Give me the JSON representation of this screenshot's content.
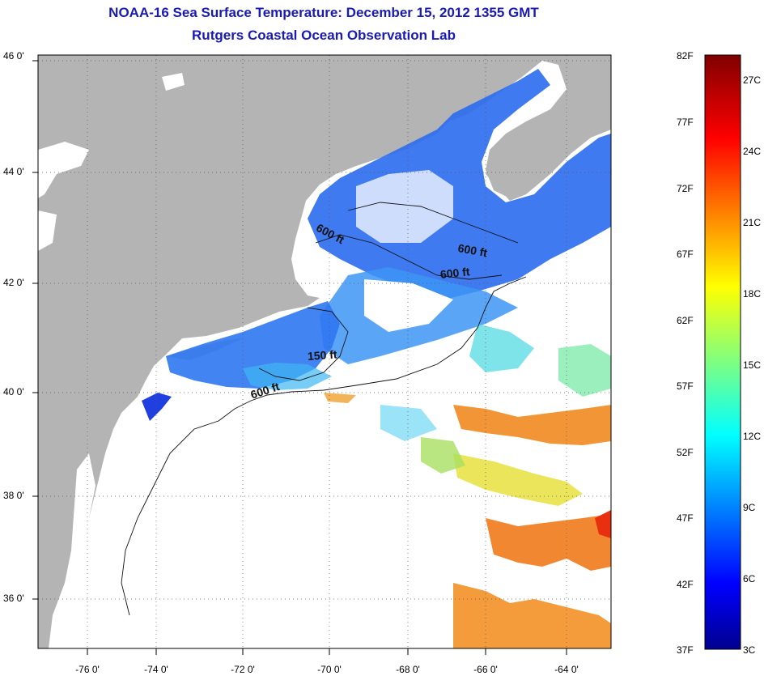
{
  "title_line1": "NOAA-16 Sea Surface Temperature:  December 15, 2012 1355 GMT",
  "title_line2": "Rutgers Coastal Ocean Observation Lab",
  "map": {
    "lon_labels": [
      "-76 0'",
      "-74 0'",
      "-72 0'",
      "-70 0'",
      "-68 0'",
      "-66 0'",
      "-64 0'"
    ],
    "lat_labels": [
      "46 0'",
      "44 0'",
      "42 0'",
      "40 0'",
      "38 0'",
      "36 0'"
    ],
    "lon_range": [
      -77,
      -63
    ],
    "lat_range": [
      35,
      46
    ],
    "grid": "dotted",
    "land_color": "#b4b4b4",
    "cloud_color": "#ffffff"
  },
  "contour_labels": [
    "600 ft",
    "600 ft",
    "600 ft",
    "150 ft",
    "600 ft"
  ],
  "colorbar": {
    "fahrenheit_labels": [
      "82F",
      "77F",
      "72F",
      "67F",
      "62F",
      "57F",
      "52F",
      "47F",
      "42F",
      "37F"
    ],
    "celsius_labels": [
      "27C",
      "24C",
      "21C",
      "18C",
      "15C",
      "12C",
      "9C",
      "6C",
      "3C"
    ],
    "min_F": 37,
    "max_F": 82,
    "colormap": "jet"
  }
}
